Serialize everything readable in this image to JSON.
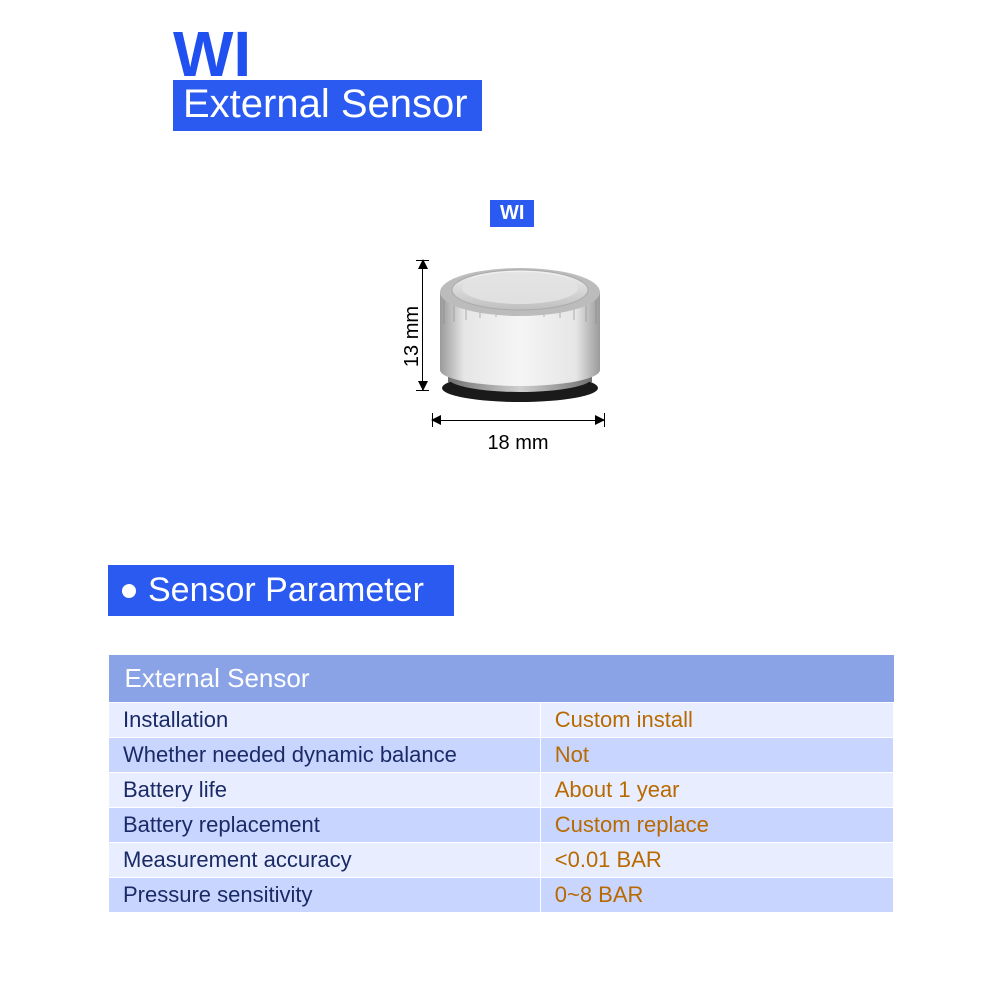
{
  "colors": {
    "brand_blue": "#2050f0",
    "bar_blue": "#2a5af0",
    "badge_blue": "#2a5af0",
    "table_header_bg": "#8aa3e6",
    "row_odd_bg": "#e8eeff",
    "row_even_bg": "#c8d6ff",
    "cell_border": "#ffffff",
    "key_text": "#1a2a66",
    "val_text": "#b86a00",
    "page_bg": "#ffffff"
  },
  "header": {
    "model": "WI",
    "subtitle": "External Sensor"
  },
  "diagram": {
    "badge": "WI",
    "height_label": "13 mm",
    "width_label": "18 mm"
  },
  "section": {
    "title": "Sensor Parameter"
  },
  "table": {
    "header": "External Sensor",
    "rows": [
      {
        "key": "Installation",
        "val": "Custom install"
      },
      {
        "key": "Whether needed dynamic balance",
        "val": "Not"
      },
      {
        "key": "Battery life",
        "val": "About 1 year"
      },
      {
        "key": "Battery replacement",
        "val": "Custom replace"
      },
      {
        "key": "Measurement accuracy",
        "val": "<0.01 BAR"
      },
      {
        "key": "Pressure sensitivity",
        "val": "0~8 BAR"
      }
    ]
  }
}
